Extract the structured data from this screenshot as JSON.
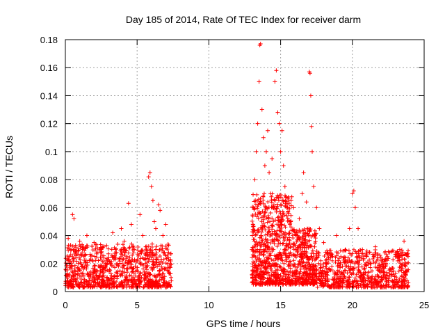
{
  "chart_data": {
    "type": "scatter",
    "title": "Day 185 of 2014, Rate Of TEC Index for receiver darm",
    "xlabel": "GPS time / hours",
    "ylabel": "ROTI / TECUs",
    "xlim": [
      0,
      25
    ],
    "ylim": [
      0,
      0.18
    ],
    "xticks": [
      0,
      5,
      10,
      15,
      20,
      25
    ],
    "yticks": [
      0,
      0.02,
      0.04,
      0.06,
      0.08,
      0.1,
      0.12,
      0.14,
      0.16,
      0.18
    ],
    "ytick_labels": [
      "0",
      "0.02",
      "0.04",
      "0.06",
      "0.08",
      "0.1",
      "0.12",
      "0.14",
      "0.16",
      "0.18"
    ],
    "grid": true,
    "marker": "+",
    "color": "#ff0000",
    "series": [
      {
        "name": "ROTI",
        "points": [
          [
            0.1,
            0.012
          ],
          [
            0.2,
            0.038
          ],
          [
            0.3,
            0.025
          ],
          [
            0.4,
            0.03
          ],
          [
            0.5,
            0.055
          ],
          [
            0.6,
            0.052
          ],
          [
            0.7,
            0.028
          ],
          [
            0.9,
            0.02
          ],
          [
            1.0,
            0.036
          ],
          [
            1.2,
            0.018
          ],
          [
            1.4,
            0.026
          ],
          [
            1.5,
            0.04
          ],
          [
            1.7,
            0.022
          ],
          [
            2.0,
            0.035
          ],
          [
            2.2,
            0.015
          ],
          [
            2.5,
            0.03
          ],
          [
            2.8,
            0.02
          ],
          [
            3.0,
            0.027
          ],
          [
            3.3,
            0.042
          ],
          [
            3.5,
            0.03
          ],
          [
            3.7,
            0.018
          ],
          [
            3.9,
            0.045
          ],
          [
            4.1,
            0.036
          ],
          [
            4.3,
            0.025
          ],
          [
            4.4,
            0.063
          ],
          [
            4.6,
            0.048
          ],
          [
            4.8,
            0.03
          ],
          [
            5.0,
            0.022
          ],
          [
            5.2,
            0.055
          ],
          [
            5.4,
            0.04
          ],
          [
            5.6,
            0.032
          ],
          [
            5.8,
            0.082
          ],
          [
            5.9,
            0.085
          ],
          [
            6.0,
            0.075
          ],
          [
            6.1,
            0.065
          ],
          [
            6.2,
            0.05
          ],
          [
            6.3,
            0.045
          ],
          [
            6.5,
            0.062
          ],
          [
            6.6,
            0.058
          ],
          [
            6.8,
            0.04
          ],
          [
            7.0,
            0.048
          ],
          [
            7.2,
            0.033
          ],
          [
            7.3,
            0.02
          ],
          [
            13.0,
            0.03
          ],
          [
            13.1,
            0.06
          ],
          [
            13.2,
            0.08
          ],
          [
            13.3,
            0.1
          ],
          [
            13.4,
            0.12
          ],
          [
            13.5,
            0.15
          ],
          [
            13.55,
            0.176
          ],
          [
            13.6,
            0.177
          ],
          [
            13.7,
            0.13
          ],
          [
            13.8,
            0.11
          ],
          [
            13.9,
            0.09
          ],
          [
            14.0,
            0.1
          ],
          [
            14.1,
            0.115
          ],
          [
            14.2,
            0.085
          ],
          [
            14.3,
            0.07
          ],
          [
            14.4,
            0.095
          ],
          [
            14.5,
            0.06
          ],
          [
            14.6,
            0.15
          ],
          [
            14.7,
            0.158
          ],
          [
            14.8,
            0.128
          ],
          [
            14.9,
            0.12
          ],
          [
            15.0,
            0.1
          ],
          [
            15.1,
            0.115
          ],
          [
            15.2,
            0.09
          ],
          [
            15.3,
            0.075
          ],
          [
            15.5,
            0.06
          ],
          [
            15.7,
            0.05
          ],
          [
            15.9,
            0.06
          ],
          [
            16.1,
            0.042
          ],
          [
            16.3,
            0.052
          ],
          [
            16.5,
            0.07
          ],
          [
            16.6,
            0.085
          ],
          [
            16.8,
            0.064
          ],
          [
            17.0,
            0.157
          ],
          [
            17.05,
            0.156
          ],
          [
            17.1,
            0.14
          ],
          [
            17.15,
            0.118
          ],
          [
            17.2,
            0.1
          ],
          [
            17.3,
            0.075
          ],
          [
            17.5,
            0.06
          ],
          [
            17.7,
            0.045
          ],
          [
            18.0,
            0.035
          ],
          [
            18.3,
            0.028
          ],
          [
            18.6,
            0.022
          ],
          [
            18.9,
            0.04
          ],
          [
            19.2,
            0.025
          ],
          [
            19.5,
            0.03
          ],
          [
            19.8,
            0.045
          ],
          [
            20.0,
            0.07
          ],
          [
            20.1,
            0.072
          ],
          [
            20.2,
            0.06
          ],
          [
            20.4,
            0.045
          ],
          [
            20.7,
            0.03
          ],
          [
            21.0,
            0.025
          ],
          [
            21.3,
            0.02
          ],
          [
            21.6,
            0.032
          ],
          [
            22.0,
            0.022
          ],
          [
            22.3,
            0.018
          ],
          [
            22.6,
            0.028
          ],
          [
            23.0,
            0.025
          ],
          [
            23.3,
            0.03
          ],
          [
            23.6,
            0.036
          ],
          [
            23.8,
            0.02
          ]
        ],
        "bands": [
          {
            "x0": 0.0,
            "x1": 7.4,
            "ymin": 0.003,
            "ymax": 0.034,
            "count": 900
          },
          {
            "x0": 13.0,
            "x1": 15.8,
            "ymin": 0.005,
            "ymax": 0.07,
            "count": 700
          },
          {
            "x0": 15.8,
            "x1": 17.5,
            "ymin": 0.005,
            "ymax": 0.045,
            "count": 350
          },
          {
            "x0": 17.5,
            "x1": 23.9,
            "ymin": 0.003,
            "ymax": 0.03,
            "count": 700
          }
        ]
      }
    ]
  }
}
